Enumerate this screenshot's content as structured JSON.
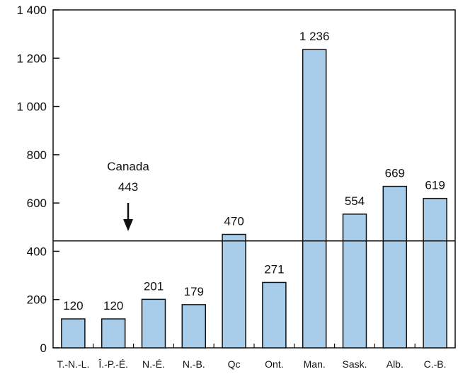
{
  "chart_data": {
    "type": "bar",
    "categories": [
      "T.-N.-L.",
      "Î.-P.-É.",
      "N.-É.",
      "N.-B.",
      "Qc",
      "Ont.",
      "Man.",
      "Sask.",
      "Alb.",
      "C.-B."
    ],
    "values": [
      120,
      120,
      201,
      179,
      470,
      271,
      1236,
      554,
      669,
      619
    ],
    "value_labels": [
      "120",
      "120",
      "201",
      "179",
      "470",
      "271",
      "1 236",
      "554",
      "669",
      "619"
    ],
    "yticks": [
      0,
      200,
      400,
      600,
      800,
      1000,
      1200,
      1400
    ],
    "ytick_labels": [
      "0",
      "200",
      "400",
      "600",
      "800",
      "1 000",
      "1 200",
      "1 400"
    ],
    "ylim": [
      0,
      1400
    ],
    "grid": false,
    "reference_line": {
      "name": "Canada",
      "value": 443,
      "value_label": "443"
    },
    "colors": {
      "bar_fill": "#a8cdeb",
      "bar_stroke": "#111111",
      "axis": "#111111"
    }
  }
}
